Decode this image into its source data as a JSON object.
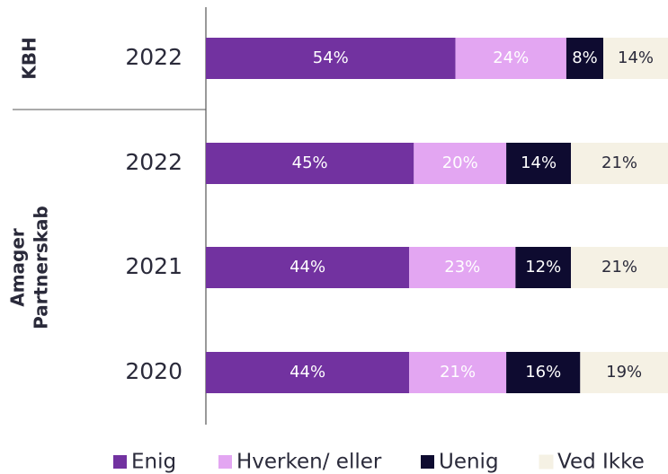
{
  "chart_data": {
    "type": "stacked-bar",
    "group_labels": [
      [
        "KBH"
      ],
      [
        "Amager",
        "Partnerskab"
      ]
    ],
    "categories": [
      "2022",
      "2022",
      "2021",
      "2020"
    ],
    "series": [
      {
        "name": "Enig",
        "color": "#7232a0",
        "label_color": "#ffffff",
        "values": [
          54,
          45,
          44,
          44
        ],
        "value_labels": [
          "54%",
          "45%",
          "44%",
          "44%"
        ]
      },
      {
        "name": "Hverken/ eller",
        "color": "#e3a6f2",
        "label_color": "#ffffff",
        "values": [
          24,
          20,
          23,
          21
        ],
        "value_labels": [
          "24%",
          "20%",
          "23%",
          "21%"
        ]
      },
      {
        "name": "Uenig",
        "color": "#0e0b30",
        "label_color": "#ffffff",
        "values": [
          8,
          14,
          12,
          16
        ],
        "value_labels": [
          "8%",
          "14%",
          "12%",
          "16%"
        ]
      },
      {
        "name": "Ved Ikke",
        "color": "#f5f1e4",
        "label_color": "#2a2a3a",
        "values": [
          14,
          21,
          21,
          19
        ],
        "value_labels": [
          "14%",
          "21%",
          "21%",
          "19%"
        ]
      }
    ],
    "xlim": [
      0,
      100
    ]
  }
}
